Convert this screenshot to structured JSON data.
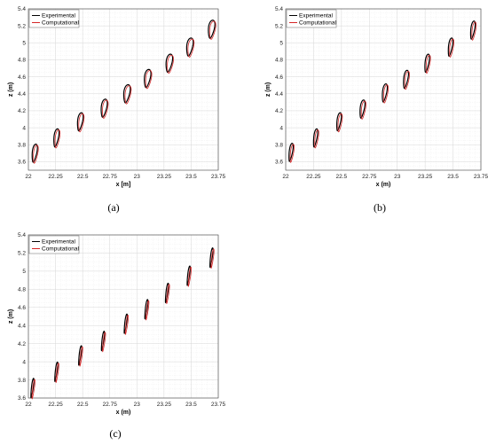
{
  "figure": {
    "labels": [
      "(a)",
      "(b)",
      "(c)"
    ]
  },
  "chart_data": [
    {
      "type": "line",
      "panel": "(a)",
      "xlabel": "x [m]",
      "ylabel": "z (m)",
      "xlim": [
        22,
        23.75
      ],
      "ylim": [
        3.5,
        5.4
      ],
      "xticks": [
        "22",
        "22.25",
        "22.5",
        "22.75",
        "23",
        "23.25",
        "23.5",
        "23.75"
      ],
      "yticks": [
        "3.6",
        "3.8",
        "4",
        "4.2",
        "4.4",
        "4.6",
        "4.8",
        "5",
        "5.2",
        "5.4"
      ],
      "grid": true,
      "legend_position": "top-left",
      "series": [
        {
          "name": "Experimental",
          "color": "#000000"
        },
        {
          "name": "Computational",
          "color": "#d62728"
        }
      ],
      "sections": [
        {
          "cx": 22.06,
          "cz": 3.7,
          "halfLength": 0.11,
          "halfWidth": 0.02
        },
        {
          "cx": 22.26,
          "cz": 3.88,
          "halfLength": 0.11,
          "halfWidth": 0.02
        },
        {
          "cx": 22.48,
          "cz": 4.07,
          "halfLength": 0.11,
          "halfWidth": 0.022
        },
        {
          "cx": 22.7,
          "cz": 4.23,
          "halfLength": 0.11,
          "halfWidth": 0.024
        },
        {
          "cx": 22.91,
          "cz": 4.4,
          "halfLength": 0.11,
          "halfWidth": 0.026
        },
        {
          "cx": 23.1,
          "cz": 4.58,
          "halfLength": 0.11,
          "halfWidth": 0.026
        },
        {
          "cx": 23.3,
          "cz": 4.76,
          "halfLength": 0.11,
          "halfWidth": 0.026
        },
        {
          "cx": 23.49,
          "cz": 4.95,
          "halfLength": 0.11,
          "halfWidth": 0.026
        },
        {
          "cx": 23.69,
          "cz": 5.16,
          "halfLength": 0.11,
          "halfWidth": 0.026
        }
      ]
    },
    {
      "type": "line",
      "panel": "(b)",
      "xlabel": "x (m)",
      "ylabel": "z (m)",
      "xlim": [
        22,
        23.75
      ],
      "ylim": [
        3.5,
        5.4
      ],
      "xticks": [
        "22",
        "22.25",
        "22.5",
        "22.75",
        "23",
        "23.25",
        "23.5",
        "23.75"
      ],
      "yticks": [
        "3.6",
        "3.8",
        "4",
        "4.2",
        "4.4",
        "4.6",
        "4.8",
        "5",
        "5.2",
        "5.4"
      ],
      "grid": true,
      "legend_position": "top-left",
      "series": [
        {
          "name": "Experimental",
          "color": "#000000"
        },
        {
          "name": "Computational",
          "color": "#d62728"
        }
      ],
      "sections": [
        {
          "cx": 22.05,
          "cz": 3.71,
          "halfLength": 0.11,
          "halfWidth": 0.016
        },
        {
          "cx": 22.27,
          "cz": 3.88,
          "halfLength": 0.11,
          "halfWidth": 0.016
        },
        {
          "cx": 22.48,
          "cz": 4.07,
          "halfLength": 0.11,
          "halfWidth": 0.018
        },
        {
          "cx": 22.69,
          "cz": 4.22,
          "halfLength": 0.11,
          "halfWidth": 0.02
        },
        {
          "cx": 22.89,
          "cz": 4.41,
          "halfLength": 0.11,
          "halfWidth": 0.02
        },
        {
          "cx": 23.08,
          "cz": 4.57,
          "halfLength": 0.11,
          "halfWidth": 0.02
        },
        {
          "cx": 23.27,
          "cz": 4.76,
          "halfLength": 0.11,
          "halfWidth": 0.018
        },
        {
          "cx": 23.48,
          "cz": 4.95,
          "halfLength": 0.11,
          "halfWidth": 0.018
        },
        {
          "cx": 23.68,
          "cz": 5.15,
          "halfLength": 0.11,
          "halfWidth": 0.018
        }
      ]
    },
    {
      "type": "line",
      "panel": "(c)",
      "xlabel": "x (m)",
      "ylabel": "z (m)",
      "xlim": [
        22,
        23.75
      ],
      "ylim": [
        3.6,
        5.4
      ],
      "xticks": [
        "22",
        "22.25",
        "22.5",
        "22.75",
        "23",
        "23.25",
        "23.5",
        "23.75"
      ],
      "yticks": [
        "3.6",
        "3.8",
        "4",
        "4.2",
        "4.4",
        "4.6",
        "4.8",
        "5",
        "5.2",
        "5.4"
      ],
      "grid": true,
      "legend_position": "top-left",
      "series": [
        {
          "name": "Experimental",
          "color": "#000000"
        },
        {
          "name": "Computational",
          "color": "#d62728"
        }
      ],
      "sections": [
        {
          "cx": 22.04,
          "cz": 3.71,
          "halfLength": 0.11,
          "halfWidth": 0.01
        },
        {
          "cx": 22.26,
          "cz": 3.89,
          "halfLength": 0.11,
          "halfWidth": 0.01
        },
        {
          "cx": 22.48,
          "cz": 4.07,
          "halfLength": 0.11,
          "halfWidth": 0.01
        },
        {
          "cx": 22.69,
          "cz": 4.23,
          "halfLength": 0.11,
          "halfWidth": 0.01
        },
        {
          "cx": 22.9,
          "cz": 4.42,
          "halfLength": 0.11,
          "halfWidth": 0.01
        },
        {
          "cx": 23.09,
          "cz": 4.58,
          "halfLength": 0.11,
          "halfWidth": 0.01
        },
        {
          "cx": 23.28,
          "cz": 4.76,
          "halfLength": 0.11,
          "halfWidth": 0.01
        },
        {
          "cx": 23.48,
          "cz": 4.95,
          "halfLength": 0.11,
          "halfWidth": 0.01
        },
        {
          "cx": 23.69,
          "cz": 5.15,
          "halfLength": 0.11,
          "halfWidth": 0.01
        }
      ]
    }
  ]
}
